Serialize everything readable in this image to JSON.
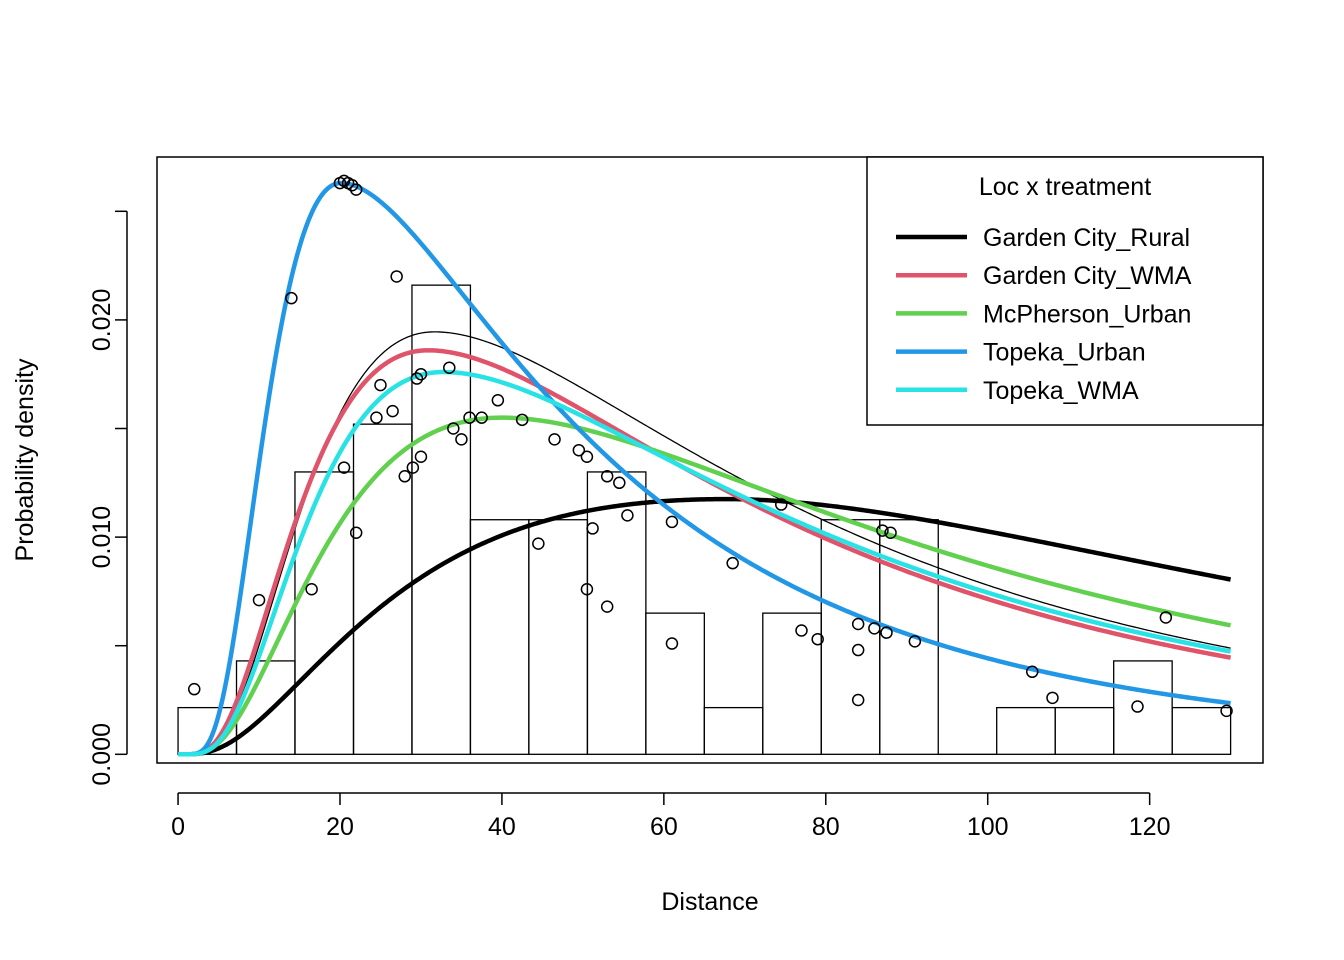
{
  "chart_data": {
    "type": "histogram",
    "title": "",
    "xlabel": "Distance",
    "ylabel": "Probability density",
    "xlim": [
      -2.6,
      134
    ],
    "ylim": [
      -0.0004,
      0.0275
    ],
    "x_ticks": [
      0,
      20,
      40,
      60,
      80,
      100,
      120
    ],
    "x_tick_labels": [
      "0",
      "20",
      "40",
      "60",
      "80",
      "100",
      "120"
    ],
    "y_ticks": [
      0.0,
      0.005,
      0.01,
      0.015,
      0.02,
      0.025
    ],
    "y_tick_labels": [
      "0.000",
      "",
      "0.010",
      "",
      "0.020",
      ""
    ],
    "histogram": {
      "bin_edges": [
        0,
        7.22,
        14.44,
        21.67,
        28.89,
        36.11,
        43.33,
        50.56,
        57.78,
        65.0,
        72.22,
        79.44,
        86.67,
        93.89,
        101.11,
        108.33,
        115.56,
        122.78,
        130
      ],
      "densities": [
        0.00215,
        0.0043,
        0.013,
        0.0152,
        0.0216,
        0.0108,
        0.0108,
        0.013,
        0.0065,
        0.00215,
        0.0065,
        0.0108,
        0.0108,
        0.0,
        0.00215,
        0.00215,
        0.0043,
        0.00215
      ]
    },
    "reference_curve": {
      "name": "",
      "color": "#000000",
      "params": {
        "A": 0.01945,
        "mu": 3.455,
        "sigma": 0.7,
        "sigma_fall": 0.85
      }
    },
    "legend": {
      "title": "Loc x treatment",
      "position": "top-right"
    },
    "series": [
      {
        "name": "Garden City_Rural",
        "color": "#000000",
        "params": {
          "A": 0.01175,
          "mu": 4.215,
          "sigma": 0.95,
          "sigma_fall": 0.75
        },
        "points": [
          [
            51.2,
            0.0104
          ],
          [
            55.5,
            0.011
          ],
          [
            61,
            0.0107
          ],
          [
            74.5,
            0.0115
          ],
          [
            87,
            0.0103
          ],
          [
            88,
            0.0102
          ],
          [
            122,
            0.0063
          ]
        ]
      },
      {
        "name": "Garden City_WMA",
        "color": "#DF536B",
        "params": {
          "A": 0.0186,
          "mu": 3.43,
          "sigma": 0.72,
          "sigma_fall": 0.85
        },
        "points": [
          [
            22,
            0.0102
          ],
          [
            24.5,
            0.0155
          ],
          [
            25,
            0.017
          ],
          [
            29.5,
            0.0173
          ],
          [
            33.5,
            0.0178
          ],
          [
            42.5,
            0.0154
          ],
          [
            53,
            0.0128
          ],
          [
            77,
            0.0057
          ],
          [
            79,
            0.0053
          ],
          [
            108,
            0.0026
          ],
          [
            118.5,
            0.0022
          ]
        ]
      },
      {
        "name": "McPherson_Urban",
        "color": "#61D04F",
        "params": {
          "A": 0.0155,
          "mu": 3.69,
          "sigma": 0.8,
          "sigma_fall": 0.85
        },
        "points": [
          [
            16.5,
            0.0076
          ],
          [
            28,
            0.0128
          ],
          [
            29,
            0.0132
          ],
          [
            30,
            0.0137
          ],
          [
            34,
            0.015
          ],
          [
            36,
            0.0155
          ],
          [
            37.5,
            0.0155
          ],
          [
            46.5,
            0.0145
          ],
          [
            49.5,
            0.014
          ],
          [
            50.5,
            0.0137
          ],
          [
            54.5,
            0.0125
          ],
          [
            68.5,
            0.0088
          ],
          [
            84,
            0.006
          ],
          [
            86,
            0.0058
          ],
          [
            87.5,
            0.0056
          ],
          [
            91,
            0.0052
          ],
          [
            105.5,
            0.0038
          ]
        ]
      },
      {
        "name": "Topeka_Urban",
        "color": "#2297E6",
        "params": {
          "A": 0.0263,
          "mu": 3.0,
          "sigma": 0.6,
          "sigma_fall": 0.85
        },
        "points": [
          [
            2,
            0.003
          ],
          [
            10,
            0.0071
          ],
          [
            14,
            0.021
          ],
          [
            20,
            0.0263
          ],
          [
            20.5,
            0.0264
          ],
          [
            21,
            0.0263
          ],
          [
            21.5,
            0.0262
          ],
          [
            22,
            0.026
          ],
          [
            27,
            0.022
          ],
          [
            35,
            0.0145
          ],
          [
            44.5,
            0.0097
          ],
          [
            50.5,
            0.0076
          ],
          [
            53,
            0.0068
          ],
          [
            61,
            0.0051
          ],
          [
            84,
            0.0025
          ]
        ]
      },
      {
        "name": "Topeka_WMA",
        "color": "#28E2E5",
        "params": {
          "A": 0.0176,
          "mu": 3.49,
          "sigma": 0.72,
          "sigma_fall": 0.85
        },
        "points": [
          [
            20.5,
            0.0132
          ],
          [
            26.5,
            0.0158
          ],
          [
            30,
            0.0175
          ],
          [
            39.5,
            0.0163
          ],
          [
            84,
            0.0048
          ],
          [
            129.5,
            0.002
          ]
        ]
      }
    ]
  }
}
